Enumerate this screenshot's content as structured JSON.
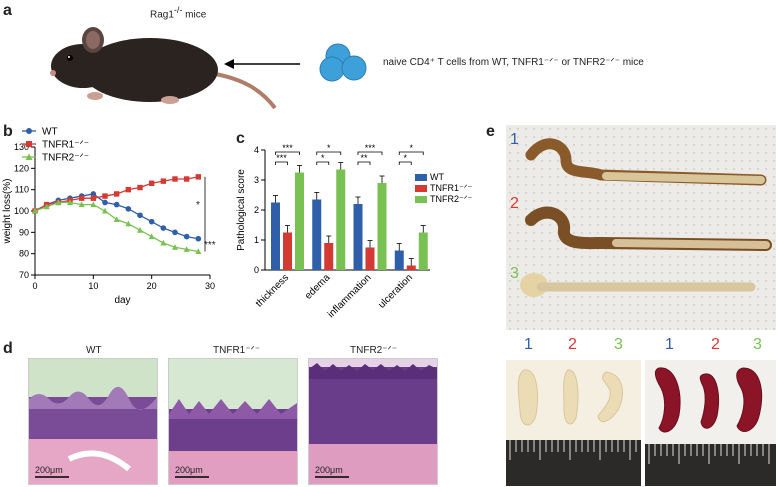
{
  "panel_a": {
    "letter": "a",
    "mouse_label": "Rag1",
    "mouse_label_sup": "-/-",
    "mouse_label_suffix": " mice",
    "cells_label": "naive CD4⁺ T cells from WT, TNFR1⁻ᐟ⁻ or TNFR2⁻ᐟ⁻ mice"
  },
  "panel_b": {
    "letter": "b",
    "stars": [
      "*",
      "***"
    ]
  },
  "panel_c": {
    "letter": "c",
    "stars": [
      "***",
      "***",
      "*",
      "*",
      "***",
      "**",
      "*",
      "*"
    ]
  },
  "panel_d": {
    "letter": "d",
    "titles": [
      "WT",
      "TNFR1⁻ᐟ⁻",
      "TNFR2⁻ᐟ⁻"
    ],
    "scale_label": "200μm"
  },
  "panel_e": {
    "letter": "e",
    "numbers": [
      "1",
      "2",
      "3"
    ],
    "colors": {
      "1": "#2f5fa8",
      "2": "#d33a34",
      "3": "#79c152"
    }
  },
  "chart_data": [
    {
      "type": "line",
      "xlabel": "day",
      "ylabel": "weight loss(%)",
      "xlim": [
        0,
        30
      ],
      "ylim": [
        70,
        130
      ],
      "xticks": [
        0,
        10,
        20,
        30
      ],
      "yticks": [
        70,
        80,
        90,
        100,
        110,
        120,
        130
      ],
      "legend_placement": "top-left",
      "series": [
        {
          "name": "WT",
          "color": "#2f5fa8",
          "marker": "circle",
          "x": [
            0,
            2,
            4,
            6,
            8,
            10,
            12,
            14,
            16,
            18,
            20,
            22,
            24,
            26,
            28
          ],
          "y": [
            100,
            103,
            105,
            106,
            107,
            108,
            104,
            103,
            101,
            98,
            95,
            92,
            90,
            88,
            87
          ]
        },
        {
          "name": "TNFR1⁻ᐟ⁻",
          "color": "#d33a34",
          "marker": "square",
          "x": [
            0,
            2,
            4,
            6,
            8,
            10,
            12,
            14,
            16,
            18,
            20,
            22,
            24,
            26,
            28
          ],
          "y": [
            100,
            103,
            104,
            105,
            106,
            106,
            107,
            108,
            110,
            111,
            113,
            114,
            115,
            115,
            116
          ]
        },
        {
          "name": "TNFR2⁻ᐟ⁻",
          "color": "#79c152",
          "marker": "triangle",
          "x": [
            0,
            2,
            4,
            6,
            8,
            10,
            12,
            14,
            16,
            18,
            20,
            22,
            24,
            26,
            28
          ],
          "y": [
            100,
            102,
            104,
            104,
            103,
            103,
            100,
            96,
            94,
            91,
            88,
            85,
            83,
            82,
            81
          ]
        }
      ]
    },
    {
      "type": "bar",
      "ylabel": "Pathological score",
      "ylim": [
        0,
        4
      ],
      "yticks": [
        0,
        1,
        2,
        3,
        4
      ],
      "categories": [
        "thickness",
        "edema",
        "inflammation",
        "ulceration"
      ],
      "legend_placement": "top-right",
      "series": [
        {
          "name": "WT",
          "color": "#2f5fa8",
          "values": [
            2.25,
            2.35,
            2.2,
            0.65
          ]
        },
        {
          "name": "TNFR1⁻ᐟ⁻",
          "color": "#d33a34",
          "values": [
            1.25,
            0.9,
            0.75,
            0.15
          ]
        },
        {
          "name": "TNFR2⁻ᐟ⁻",
          "color": "#79c152",
          "values": [
            3.25,
            3.35,
            2.9,
            1.25
          ]
        }
      ]
    }
  ]
}
